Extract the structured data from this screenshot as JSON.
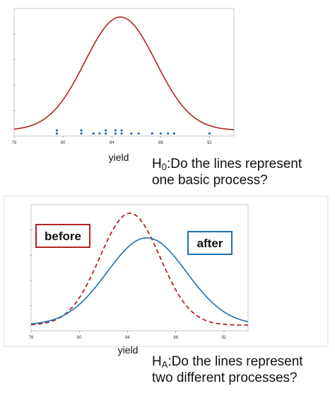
{
  "colors": {
    "h0_curve": "#b22222",
    "points": "#2a6db5",
    "before_curve": "#b22222",
    "after_curve": "#1f6fb5",
    "frame": "#c8c8c8"
  },
  "chart_data": [
    {
      "type": "line",
      "title": "",
      "xlabel": "yield",
      "ylabel": "",
      "xlim": [
        76,
        94
      ],
      "ylim": [
        0,
        1
      ],
      "x_ticks": [
        "76",
        "80",
        "84",
        "88",
        "92"
      ],
      "grid": false,
      "series": [
        {
          "style": "solid",
          "color": "#b22222",
          "distribution": "normal",
          "mean": 84.7,
          "sd": 2.9
        }
      ],
      "points": [
        79.5,
        79.5,
        81.5,
        81.5,
        82.5,
        83.0,
        83.5,
        83.5,
        84.3,
        84.3,
        84.8,
        84.8,
        85.6,
        86.2,
        87.3,
        88.0,
        88.6,
        89.1,
        92.0
      ]
    },
    {
      "type": "line",
      "title": "",
      "xlabel": "yield",
      "ylabel": "",
      "xlim": [
        76,
        94
      ],
      "ylim": [
        0,
        1
      ],
      "x_ticks": [
        "76",
        "80",
        "84",
        "88",
        "92"
      ],
      "grid": false,
      "series": [
        {
          "name": "before",
          "style": "dashed",
          "color": "#b22222",
          "distribution": "normal",
          "mean": 84.2,
          "sd": 2.5,
          "peak": 1.0
        },
        {
          "name": "after",
          "style": "solid",
          "color": "#1f6fb5",
          "distribution": "normal",
          "mean": 85.6,
          "sd": 3.3,
          "peak": 0.78
        }
      ]
    }
  ],
  "questions": {
    "h0": {
      "symbol": "H",
      "subscript": "0",
      "line1": ":Do the lines represent",
      "line2": "one basic process?"
    },
    "ha": {
      "symbol": "H",
      "subscript": "A",
      "line1": ":Do the lines represent",
      "line2": "two different processes?"
    }
  },
  "labels": {
    "before": "before",
    "after": "after"
  }
}
